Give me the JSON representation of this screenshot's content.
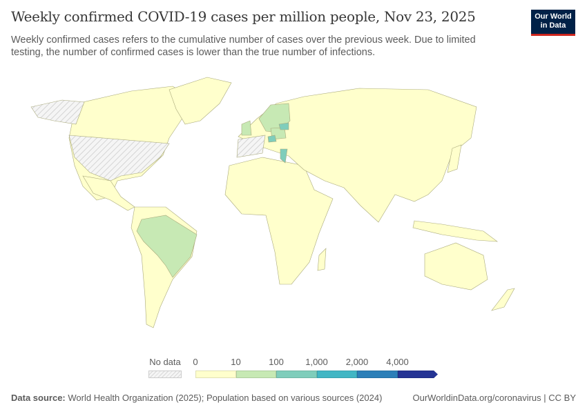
{
  "header": {
    "title": "Weekly confirmed COVID-19 cases per million people, Nov 23, 2025",
    "subtitle": "Weekly confirmed cases refers to the cumulative number of cases over the previous week. Due to limited testing, the number of confirmed cases is lower than the true number of infections.",
    "logo": "Our World in Data"
  },
  "legend": {
    "no_data_label": "No data",
    "bins": [
      {
        "label": "0",
        "color": "#ffffcc"
      },
      {
        "label": "10",
        "color": "#c7e9b4"
      },
      {
        "label": "100",
        "color": "#7fcdbb"
      },
      {
        "label": "1,000",
        "color": "#41b6c4"
      },
      {
        "label": "2,000",
        "color": "#2c7fb8"
      },
      {
        "label": "4,000",
        "color": "#253494"
      }
    ]
  },
  "footer": {
    "source_label": "Data source:",
    "source_text": "World Health Organization (2025); Population based on various sources (2024)",
    "url_license": "OurWorldinData.org/coronavirus | CC BY"
  }
}
